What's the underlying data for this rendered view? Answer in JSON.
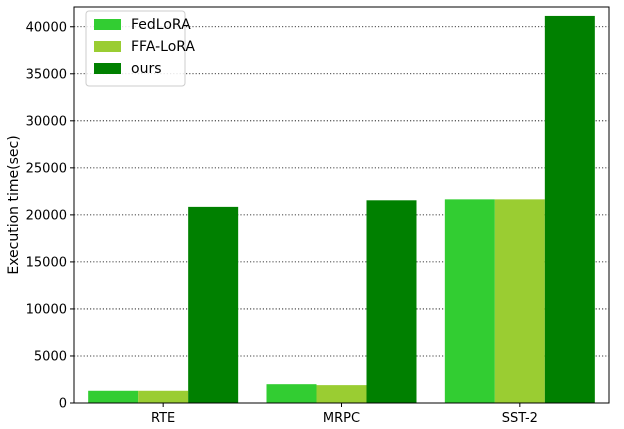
{
  "chart_data": {
    "type": "bar",
    "categories": [
      "RTE",
      "MRPC",
      "SST-2"
    ],
    "series": [
      {
        "name": "FedLoRA",
        "color": "#32cd32",
        "values": [
          1300,
          2000,
          21650
        ]
      },
      {
        "name": "FFA-LoRA",
        "color": "#9acd32",
        "values": [
          1300,
          1900,
          21650
        ]
      },
      {
        "name": "ours",
        "color": "#008000",
        "values": [
          20850,
          21550,
          41150
        ]
      }
    ],
    "title": "",
    "xlabel": "",
    "ylabel": "Execution time(sec)",
    "ylim": [
      0,
      42100
    ],
    "yticks": [
      0,
      5000,
      10000,
      15000,
      20000,
      25000,
      30000,
      35000,
      40000
    ],
    "grid": {
      "y": true,
      "style": "dotted"
    },
    "legend_position": "top-left"
  }
}
